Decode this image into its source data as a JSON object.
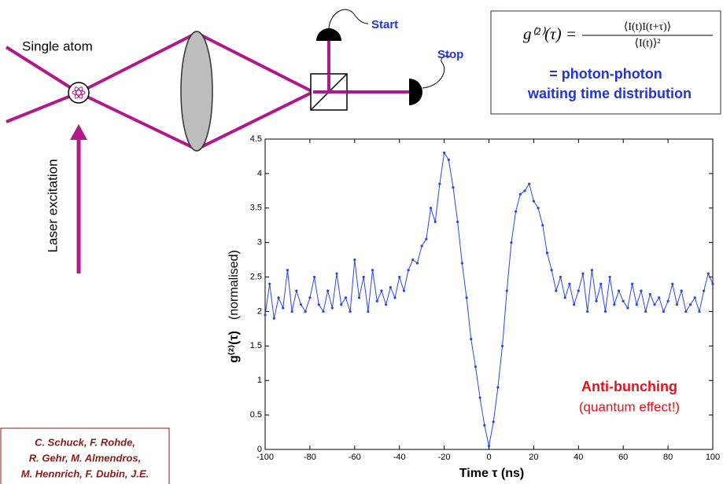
{
  "diagram": {
    "atom_label": "Single atom",
    "laser_label": "Laser excitation",
    "start_label": "Start",
    "stop_label": "Stop"
  },
  "formula": {
    "lhs": "g⁽²⁾(τ) =",
    "numerator": "⟨I(t)I(t+τ)⟩",
    "denominator": "⟨I(t)⟩²",
    "caption": [
      "= photon-photon",
      "waiting time distribution"
    ]
  },
  "citation": {
    "lines": [
      "C. Schuck, F. Rohde,",
      "R. Gehr, M. Almendros,",
      "M. Hennrich, F. Dubin, J.E."
    ]
  },
  "chart_data": {
    "type": "line",
    "x_label": "Time τ (ns)",
    "y_label": [
      "g⁽²⁾(τ)",
      "(normalised)"
    ],
    "annotations": [
      "Anti-bunching",
      "(quantum effect!)"
    ],
    "xlim": [
      -100,
      100
    ],
    "xticks": [
      -100,
      -80,
      -60,
      -40,
      -20,
      0,
      20,
      40,
      60,
      80,
      100
    ],
    "ylim": [
      0,
      4.5
    ],
    "yticks": [
      0,
      0.5,
      1,
      1.5,
      2,
      2.5,
      3,
      3.5,
      4,
      4.5
    ],
    "color": "#2a46e6",
    "x": [
      -100,
      -98,
      -96,
      -94,
      -92,
      -90,
      -88,
      -86,
      -84,
      -82,
      -80,
      -78,
      -76,
      -74,
      -72,
      -70,
      -68,
      -66,
      -64,
      -62,
      -60,
      -58,
      -56,
      -54,
      -52,
      -50,
      -48,
      -46,
      -44,
      -42,
      -40,
      -38,
      -36,
      -34,
      -32,
      -30,
      -28,
      -26,
      -24,
      -22,
      -20,
      -18,
      -16,
      -14,
      -12,
      -10,
      -8,
      -6,
      -4,
      -2,
      0,
      2,
      4,
      6,
      8,
      10,
      12,
      14,
      16,
      18,
      20,
      22,
      24,
      26,
      28,
      30,
      32,
      34,
      36,
      38,
      40,
      42,
      44,
      46,
      48,
      50,
      52,
      54,
      56,
      58,
      60,
      62,
      64,
      66,
      68,
      70,
      72,
      74,
      76,
      78,
      80,
      82,
      84,
      86,
      88,
      90,
      92,
      94,
      96,
      98,
      100
    ],
    "values": [
      1.95,
      2.4,
      1.9,
      2.2,
      2.05,
      2.6,
      2.0,
      2.3,
      2.1,
      2.0,
      2.2,
      2.5,
      2.1,
      2.0,
      2.3,
      2.05,
      2.55,
      2.1,
      2.2,
      2.0,
      2.75,
      2.2,
      2.5,
      2.0,
      2.6,
      2.15,
      2.3,
      2.1,
      2.35,
      2.2,
      2.5,
      2.3,
      2.6,
      2.75,
      2.7,
      2.95,
      3.05,
      3.5,
      3.3,
      3.85,
      4.3,
      4.2,
      3.8,
      3.3,
      2.7,
      2.2,
      1.6,
      1.2,
      0.75,
      0.35,
      0.05,
      0.4,
      0.9,
      1.5,
      2.3,
      3.0,
      3.45,
      3.7,
      3.75,
      3.85,
      3.6,
      3.5,
      3.25,
      2.85,
      2.6,
      2.3,
      2.5,
      2.2,
      2.4,
      2.1,
      2.3,
      2.55,
      2.0,
      2.6,
      2.15,
      2.4,
      2.0,
      2.5,
      2.1,
      2.3,
      2.15,
      2.05,
      2.4,
      2.1,
      2.3,
      2.0,
      2.25,
      2.1,
      2.2,
      2.0,
      2.15,
      2.4,
      2.1,
      2.3,
      2.0,
      2.1,
      2.2,
      2.0,
      2.3,
      2.55,
      2.4
    ]
  }
}
